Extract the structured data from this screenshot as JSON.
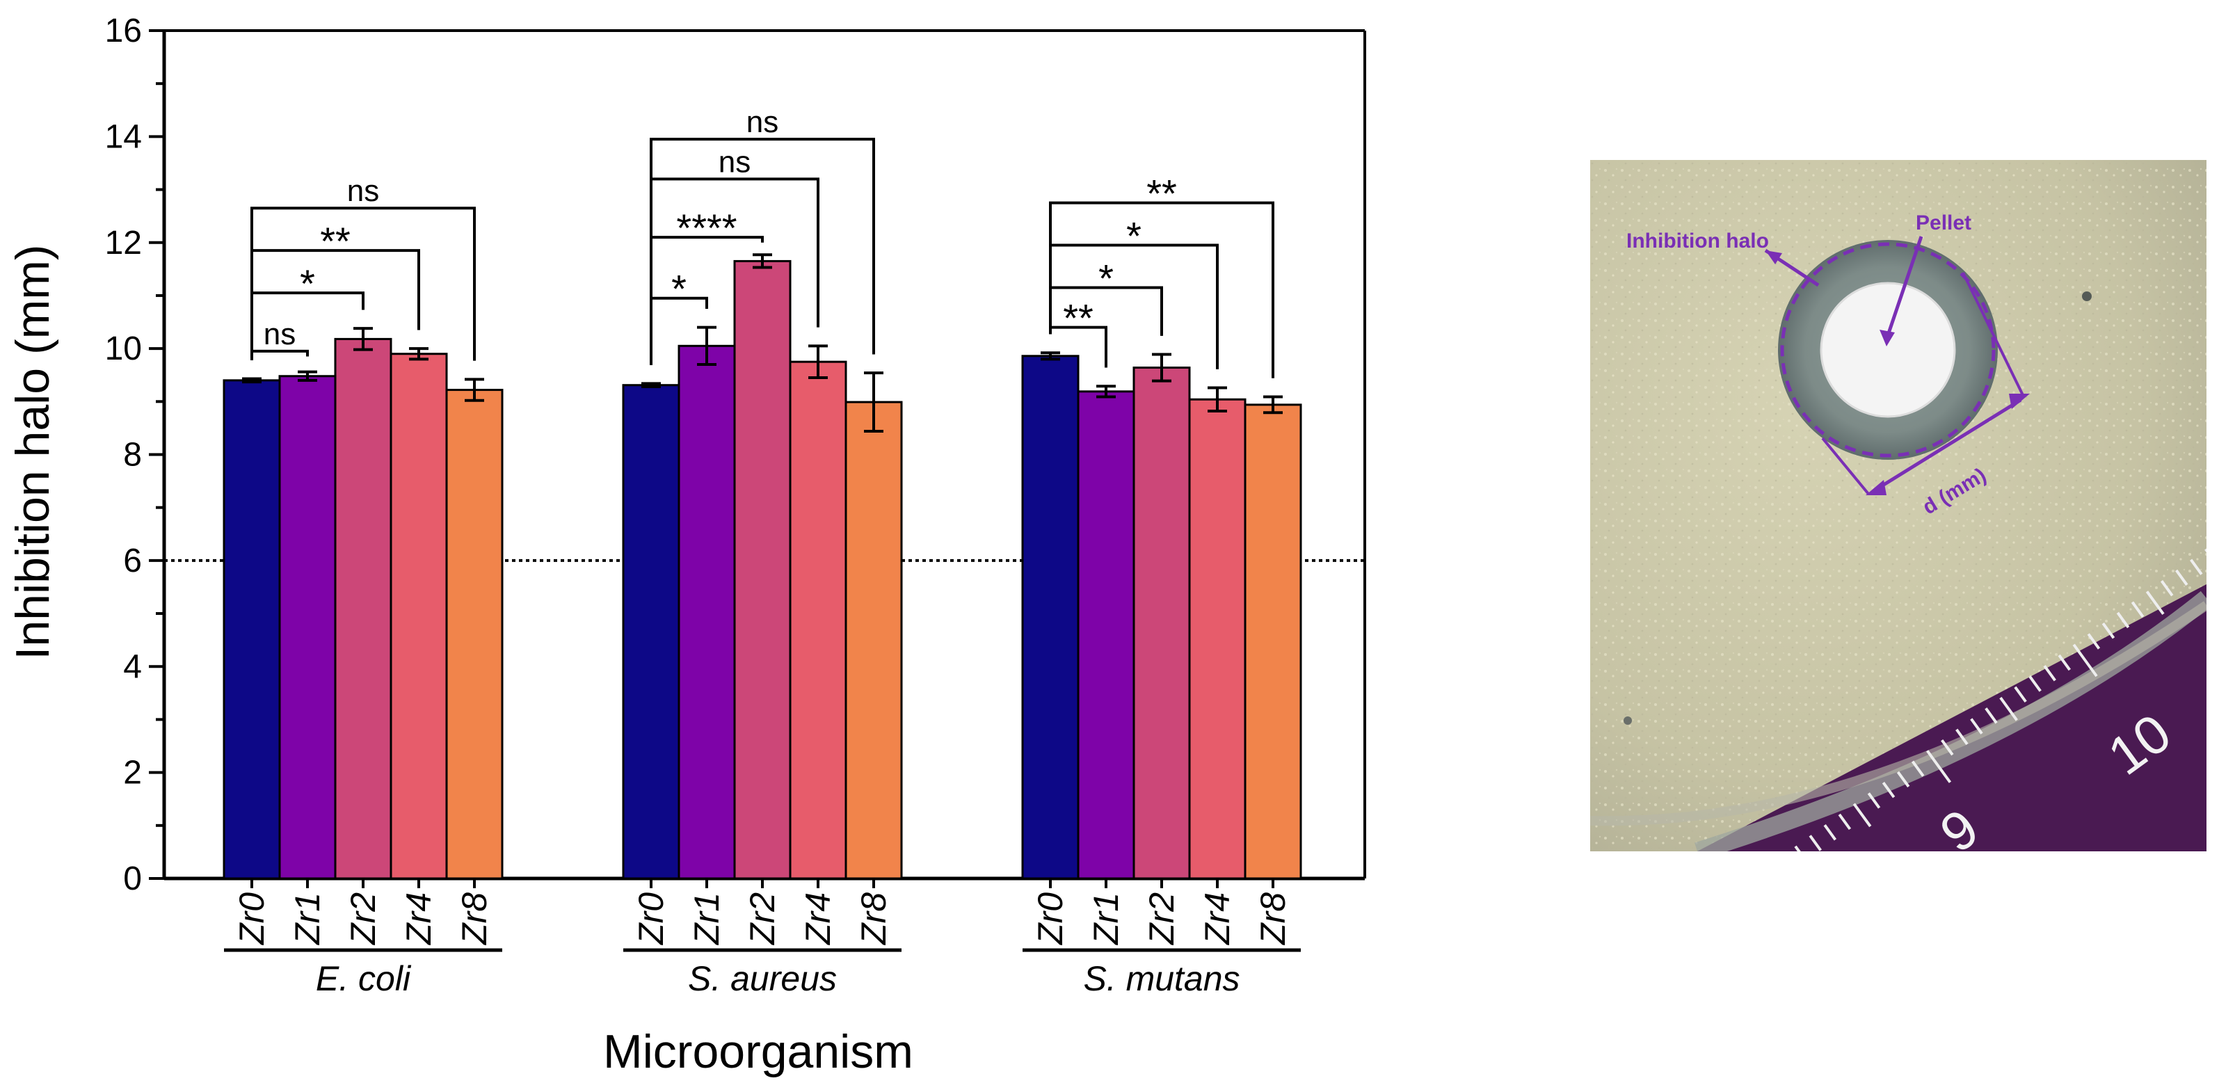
{
  "chart_data": {
    "type": "bar",
    "ylabel": "Inhibition halo (mm)",
    "xlabel": "Microorganism",
    "ylim": [
      0,
      16
    ],
    "yticks": [
      0,
      2,
      4,
      6,
      8,
      10,
      12,
      14,
      16
    ],
    "reference_line": 6,
    "groups": [
      "E. coli",
      "S. aureus",
      "S. mutans"
    ],
    "categories": [
      "Zr0",
      "Zr1",
      "Zr2",
      "Zr4",
      "Zr8"
    ],
    "colors": [
      "#0d0887",
      "#7e03a8",
      "#cc4778",
      "#e75c6b",
      "#f1844b"
    ],
    "series": [
      {
        "name": "E. coli",
        "values": [
          9.4,
          9.48,
          10.18,
          9.9,
          9.22
        ],
        "errors": [
          0.03,
          0.08,
          0.2,
          0.1,
          0.2
        ]
      },
      {
        "name": "S. aureus",
        "values": [
          9.31,
          10.05,
          11.65,
          9.75,
          8.99
        ],
        "errors": [
          0.03,
          0.35,
          0.12,
          0.3,
          0.55
        ]
      },
      {
        "name": "S. mutans",
        "values": [
          9.86,
          9.19,
          9.64,
          9.04,
          8.94
        ],
        "errors": [
          0.06,
          0.1,
          0.25,
          0.22,
          0.15
        ]
      }
    ],
    "significance": [
      [
        {
          "from": 0,
          "to": 1,
          "label": "ns",
          "y": 9.95
        },
        {
          "from": 0,
          "to": 2,
          "label": "*",
          "y": 11.05
        },
        {
          "from": 0,
          "to": 3,
          "label": "**",
          "y": 11.85
        },
        {
          "from": 0,
          "to": 4,
          "label": "ns",
          "y": 12.65
        }
      ],
      [
        {
          "from": 0,
          "to": 1,
          "label": "*",
          "y": 10.95
        },
        {
          "from": 0,
          "to": 2,
          "label": "****",
          "y": 12.1
        },
        {
          "from": 0,
          "to": 3,
          "label": "ns",
          "y": 13.2
        },
        {
          "from": 0,
          "to": 4,
          "label": "ns",
          "y": 13.95
        }
      ],
      [
        {
          "from": 0,
          "to": 1,
          "label": "**",
          "y": 10.4
        },
        {
          "from": 0,
          "to": 2,
          "label": "*",
          "y": 11.15
        },
        {
          "from": 0,
          "to": 3,
          "label": "*",
          "y": 11.95
        },
        {
          "from": 0,
          "to": 4,
          "label": "**",
          "y": 12.75
        }
      ]
    ]
  },
  "photo": {
    "inhibition_label": "Inhibition halo",
    "pellet_label": "Pellet",
    "d_label": "d (mm)",
    "ruler_labels": [
      "9",
      "10"
    ]
  }
}
